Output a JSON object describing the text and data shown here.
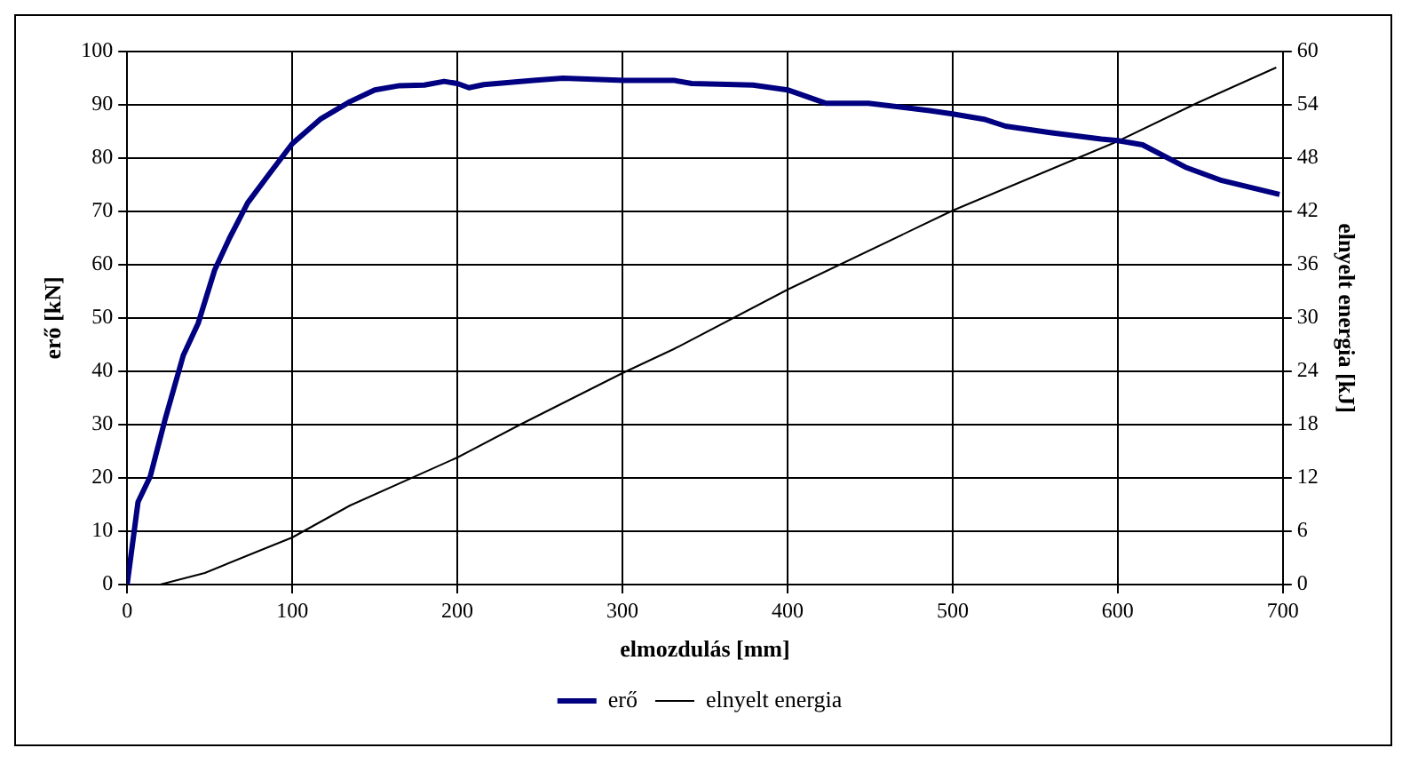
{
  "chart_data": {
    "type": "line",
    "xlabel": "elmozdulás [mm]",
    "ylabel": "erő [kN]",
    "y2label": "elnyelt energia [kJ]",
    "xlim": [
      0,
      700
    ],
    "xticks": [
      0,
      100,
      200,
      300,
      400,
      500,
      600,
      700
    ],
    "ylim": [
      0,
      100
    ],
    "yticks": [
      0,
      10,
      20,
      30,
      40,
      50,
      60,
      70,
      80,
      90,
      100
    ],
    "y2lim": [
      0,
      60
    ],
    "y2ticks": [
      0,
      6,
      12,
      18,
      24,
      30,
      36,
      42,
      48,
      54,
      60
    ],
    "grid": true,
    "legend": "bottom",
    "marker": "none",
    "line_style": "solid",
    "series": [
      {
        "name": "erő",
        "color": "#000080",
        "x": [
          0,
          6.6,
          14,
          23,
          34,
          43,
          53,
          62,
          73,
          86,
          100,
          117,
          135,
          150,
          165,
          180,
          192,
          200,
          207,
          216,
          246,
          264,
          301,
          331,
          342,
          379,
          400,
          423,
          449,
          486,
          500,
          519,
          532,
          559,
          590,
          600,
          615,
          641,
          663,
          698
        ],
        "values": [
          0,
          15.5,
          20.3,
          31,
          43,
          49,
          59,
          65,
          71.6,
          77,
          82.7,
          87.3,
          90.6,
          92.8,
          93.6,
          93.7,
          94.4,
          94,
          93.2,
          93.8,
          94.6,
          95,
          94.6,
          94.6,
          94,
          93.7,
          92.8,
          90.3,
          90.3,
          88.9,
          88.3,
          87.3,
          86,
          84.8,
          83.6,
          83.3,
          82.5,
          78.3,
          75.8,
          73.2
        ]
      },
      {
        "name": "elnyelt energia",
        "color": "#000000",
        "axis": "y2",
        "x": [
          0,
          20,
          47,
          76,
          100,
          135,
          200,
          238,
          300,
          331,
          400,
          500,
          600,
          648,
          696
        ],
        "values": [
          0,
          0,
          1.3,
          3.5,
          5.3,
          8.9,
          14.3,
          18,
          23.8,
          26.5,
          33.2,
          42.1,
          49.9,
          54.2,
          58.2
        ]
      }
    ]
  }
}
